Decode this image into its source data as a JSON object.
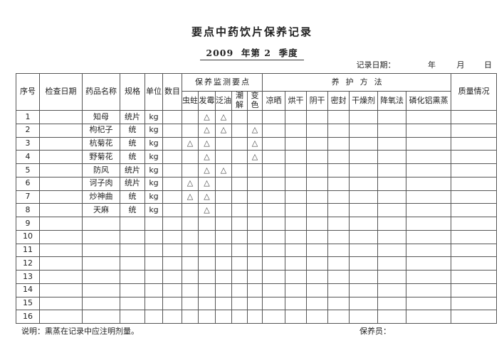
{
  "page": {
    "title": "要点中药饮片保养记录",
    "subtitle": "2009  年第 2  季度"
  },
  "record_date": {
    "label": "记录日期：",
    "year": "年",
    "month": "月",
    "day": "日"
  },
  "table": {
    "headers": {
      "seq": "序号",
      "inspect_date": "检查日期",
      "drug_name": "药品名称",
      "spec": "规格",
      "unit": "单位",
      "qty": "数目",
      "monitor_group": "保养监测要点",
      "monitor_cols": [
        "虫蛀",
        "发霉",
        "泛油",
        "潮解",
        "变色"
      ],
      "care_group": "养护方法",
      "care_cols": [
        "凉晒",
        "烘干",
        "阴干",
        "密封",
        "干燥剂",
        "降氧法",
        "磷化铝熏蒸"
      ],
      "quality": "质量情况"
    },
    "mark_glyph": "△",
    "rows": [
      {
        "no": "1",
        "date": "",
        "name": "知母",
        "spec": "统片",
        "unit": "kg",
        "qty": "",
        "monitor": [
          "",
          "△",
          "△",
          "",
          ""
        ],
        "care": [
          "",
          "",
          "",
          "",
          "",
          "",
          ""
        ],
        "quality": ""
      },
      {
        "no": "2",
        "date": "",
        "name": "枸杞子",
        "spec": "统",
        "unit": "kg",
        "qty": "",
        "monitor": [
          "",
          "△",
          "△",
          "",
          "△"
        ],
        "care": [
          "",
          "",
          "",
          "",
          "",
          "",
          ""
        ],
        "quality": ""
      },
      {
        "no": "3",
        "date": "",
        "name": "杭菊花",
        "spec": "统",
        "unit": "kg",
        "qty": "",
        "monitor": [
          "△",
          "△",
          "",
          "",
          "△"
        ],
        "care": [
          "",
          "",
          "",
          "",
          "",
          "",
          ""
        ],
        "quality": ""
      },
      {
        "no": "4",
        "date": "",
        "name": "野菊花",
        "spec": "统",
        "unit": "kg",
        "qty": "",
        "monitor": [
          "",
          "△",
          "",
          "",
          "△"
        ],
        "care": [
          "",
          "",
          "",
          "",
          "",
          "",
          ""
        ],
        "quality": ""
      },
      {
        "no": "5",
        "date": "",
        "name": "防风",
        "spec": "统片",
        "unit": "kg",
        "qty": "",
        "monitor": [
          "",
          "△",
          "△",
          "",
          ""
        ],
        "care": [
          "",
          "",
          "",
          "",
          "",
          "",
          ""
        ],
        "quality": ""
      },
      {
        "no": "6",
        "date": "",
        "name": "诃子肉",
        "spec": "统片",
        "unit": "kg",
        "qty": "",
        "monitor": [
          "△",
          "△",
          "",
          "",
          ""
        ],
        "care": [
          "",
          "",
          "",
          "",
          "",
          "",
          ""
        ],
        "quality": ""
      },
      {
        "no": "7",
        "date": "",
        "name": "炒神曲",
        "spec": "统",
        "unit": "kg",
        "qty": "",
        "monitor": [
          "△",
          "△",
          "",
          "",
          ""
        ],
        "care": [
          "",
          "",
          "",
          "",
          "",
          "",
          ""
        ],
        "quality": ""
      },
      {
        "no": "8",
        "date": "",
        "name": "天麻",
        "spec": "统",
        "unit": "kg",
        "qty": "",
        "monitor": [
          "",
          "△",
          "",
          "",
          ""
        ],
        "care": [
          "",
          "",
          "",
          "",
          "",
          "",
          ""
        ],
        "quality": ""
      },
      {
        "no": "9",
        "date": "",
        "name": "",
        "spec": "",
        "unit": "",
        "qty": "",
        "monitor": [
          "",
          "",
          "",
          "",
          ""
        ],
        "care": [
          "",
          "",
          "",
          "",
          "",
          "",
          ""
        ],
        "quality": ""
      },
      {
        "no": "10",
        "date": "",
        "name": "",
        "spec": "",
        "unit": "",
        "qty": "",
        "monitor": [
          "",
          "",
          "",
          "",
          ""
        ],
        "care": [
          "",
          "",
          "",
          "",
          "",
          "",
          ""
        ],
        "quality": ""
      },
      {
        "no": "11",
        "date": "",
        "name": "",
        "spec": "",
        "unit": "",
        "qty": "",
        "monitor": [
          "",
          "",
          "",
          "",
          ""
        ],
        "care": [
          "",
          "",
          "",
          "",
          "",
          "",
          ""
        ],
        "quality": ""
      },
      {
        "no": "12",
        "date": "",
        "name": "",
        "spec": "",
        "unit": "",
        "qty": "",
        "monitor": [
          "",
          "",
          "",
          "",
          ""
        ],
        "care": [
          "",
          "",
          "",
          "",
          "",
          "",
          ""
        ],
        "quality": ""
      },
      {
        "no": "13",
        "date": "",
        "name": "",
        "spec": "",
        "unit": "",
        "qty": "",
        "monitor": [
          "",
          "",
          "",
          "",
          ""
        ],
        "care": [
          "",
          "",
          "",
          "",
          "",
          "",
          ""
        ],
        "quality": ""
      },
      {
        "no": "14",
        "date": "",
        "name": "",
        "spec": "",
        "unit": "",
        "qty": "",
        "monitor": [
          "",
          "",
          "",
          "",
          ""
        ],
        "care": [
          "",
          "",
          "",
          "",
          "",
          "",
          ""
        ],
        "quality": ""
      },
      {
        "no": "15",
        "date": "",
        "name": "",
        "spec": "",
        "unit": "",
        "qty": "",
        "monitor": [
          "",
          "",
          "",
          "",
          ""
        ],
        "care": [
          "",
          "",
          "",
          "",
          "",
          "",
          ""
        ],
        "quality": ""
      },
      {
        "no": "16",
        "date": "",
        "name": "",
        "spec": "",
        "unit": "",
        "qty": "",
        "monitor": [
          "",
          "",
          "",
          "",
          ""
        ],
        "care": [
          "",
          "",
          "",
          "",
          "",
          "",
          ""
        ],
        "quality": ""
      }
    ]
  },
  "footer": {
    "note": "说明：熏蒸在记录中应注明剂量。",
    "caretaker_label": "保养员："
  }
}
